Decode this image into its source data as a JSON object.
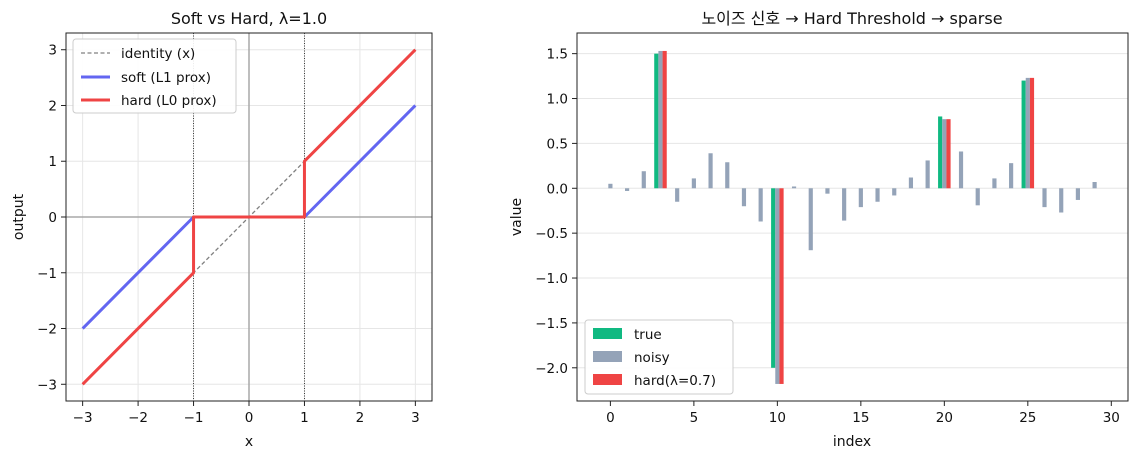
{
  "colors": {
    "identity": "#808080",
    "soft": "#6366f1",
    "hard": "#ef4444",
    "true": "#10b981",
    "noisy": "#94a3b8"
  },
  "chart_data": [
    {
      "type": "line",
      "title": "Soft vs Hard, λ=1.0",
      "xlabel": "x",
      "ylabel": "output",
      "xlim": [
        -3.3,
        3.3
      ],
      "ylim": [
        -3.3,
        3.3
      ],
      "xticks": [
        -3,
        -2,
        -1,
        0,
        1,
        2,
        3
      ],
      "yticks": [
        -3,
        -2,
        -1,
        0,
        1,
        2,
        3
      ],
      "xtick_labels": [
        "−3",
        "−2",
        "−1",
        "0",
        "1",
        "2",
        "3"
      ],
      "ytick_labels": [
        "−3",
        "−2",
        "−1",
        "0",
        "1",
        "2",
        "3"
      ],
      "grid": true,
      "legend_position": "upper-left",
      "vlines": [
        -1,
        1
      ],
      "series": [
        {
          "name": "identity (x)",
          "style": "dashed",
          "x": [
            -3,
            3
          ],
          "y": [
            -3,
            3
          ]
        },
        {
          "name": "soft (L1 prox)",
          "style": "solid",
          "x": [
            -3,
            -1,
            1,
            3
          ],
          "y": [
            -2,
            0,
            0,
            2
          ]
        },
        {
          "name": "hard (L0 prox)",
          "style": "solid",
          "x": [
            -3,
            -1,
            -1,
            1,
            1,
            3
          ],
          "y": [
            -3,
            -1,
            0,
            0,
            1,
            3
          ]
        }
      ]
    },
    {
      "type": "bar",
      "title": "노이즈 신호 → Hard Threshold → sparse",
      "xlabel": "index",
      "ylabel": "value",
      "xlim": [
        -2,
        31
      ],
      "ylim": [
        -2.37,
        1.73
      ],
      "xticks": [
        0,
        5,
        10,
        15,
        20,
        25,
        30
      ],
      "xtick_labels": [
        "0",
        "5",
        "10",
        "15",
        "20",
        "25",
        "30"
      ],
      "yticks": [
        -2.0,
        -1.5,
        -1.0,
        -0.5,
        0.0,
        0.5,
        1.0,
        1.5
      ],
      "ytick_labels": [
        "−2.0",
        "−1.5",
        "−1.0",
        "−0.5",
        "0.0",
        "0.5",
        "1.0",
        "1.5"
      ],
      "grid": true,
      "legend_position": "lower-left",
      "x": [
        0,
        1,
        2,
        3,
        4,
        5,
        6,
        7,
        8,
        9,
        10,
        11,
        12,
        13,
        14,
        15,
        16,
        17,
        18,
        19,
        20,
        21,
        22,
        23,
        24,
        25,
        26,
        27,
        28,
        29
      ],
      "series": [
        {
          "name": "true",
          "values": [
            0,
            0,
            0,
            1.5,
            0,
            0,
            0,
            0,
            0,
            0,
            -2.0,
            0,
            0,
            0,
            0,
            0,
            0,
            0,
            0,
            0,
            0.8,
            0,
            0,
            0,
            0,
            1.2,
            0,
            0,
            0,
            0
          ]
        },
        {
          "name": "noisy",
          "values": [
            0.05,
            -0.03,
            0.19,
            1.53,
            -0.15,
            0.11,
            0.39,
            0.29,
            -0.2,
            -0.37,
            -2.18,
            0.02,
            -0.69,
            -0.06,
            -0.36,
            -0.21,
            -0.15,
            -0.08,
            0.12,
            0.31,
            0.77,
            0.41,
            -0.19,
            0.11,
            0.28,
            1.23,
            -0.21,
            -0.27,
            -0.13,
            0.07
          ]
        },
        {
          "name": "hard(λ=0.7)",
          "values": [
            0,
            0,
            0,
            1.53,
            0,
            0,
            0,
            0,
            0,
            0,
            -2.18,
            0,
            0,
            0,
            0,
            0,
            0,
            0,
            0,
            0,
            0.77,
            0,
            0,
            0,
            0,
            1.23,
            0,
            0,
            0,
            0
          ]
        }
      ]
    }
  ]
}
